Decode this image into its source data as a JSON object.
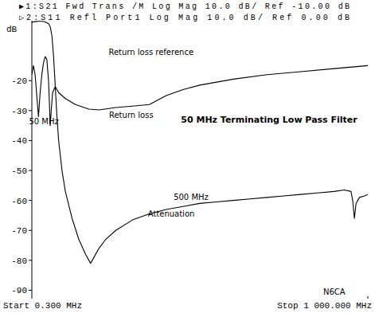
{
  "chart_data": {
    "type": "line",
    "title": "50 MHz Terminating Low Pass Filter",
    "subtitle": [
      "▶1:S21 Fwd Trans /M Log Mag 10.0 dB/ Ref -10.00 dB",
      "▷2:S11 Refl Port1 Log Mag 10.0 dB/ Ref 0.00 dB"
    ],
    "y_label": "dB",
    "xlim": [
      0.3,
      1000
    ],
    "xticks": [
      {
        "value": 0.3,
        "label": "Start 0.300 MHz"
      },
      {
        "value": 1000,
        "label": "Stop 1 000.000 MHz"
      }
    ],
    "ylim": [
      -92,
      0
    ],
    "yticks": [
      -20,
      -30,
      -40,
      -50,
      -60,
      -70,
      -80,
      -90
    ],
    "grid": false,
    "series": [
      {
        "color": "#000000",
        "line_style": "solid",
        "x": [
          0.3,
          10,
          20,
          30,
          40,
          50,
          55,
          60,
          65,
          70,
          75,
          80,
          90,
          100,
          120,
          140,
          160,
          175,
          185,
          200,
          220,
          250,
          300,
          350,
          400,
          450,
          500,
          550,
          600,
          650,
          700,
          750,
          800,
          850,
          900,
          930,
          950,
          955,
          960,
          965,
          975,
          990,
          1000
        ],
        "values": [
          -0.5,
          -0.3,
          -0.2,
          -0.2,
          -0.4,
          -1,
          -2,
          -5,
          -12,
          -22,
          -32,
          -40,
          -50,
          -57,
          -66,
          -73,
          -78,
          -81,
          -79,
          -76,
          -73,
          -70,
          -66.5,
          -64.5,
          -63,
          -62,
          -61,
          -60.5,
          -60,
          -59.5,
          -59,
          -58.5,
          -58,
          -57.5,
          -57,
          -56.5,
          -57,
          -60,
          -66,
          -61,
          -59,
          -58.5,
          -58
        ]
      },
      {
        "color": "#000000",
        "line_style": "solid",
        "x": [
          0.3,
          5,
          10,
          15,
          20,
          25,
          30,
          35,
          40,
          45,
          50,
          55,
          58,
          62,
          70,
          80,
          100,
          130,
          170,
          200,
          250,
          300,
          350,
          400,
          450,
          500,
          550,
          600,
          700,
          800,
          900,
          1000
        ],
        "values": [
          -18,
          -15,
          -18,
          -25,
          -32,
          -24,
          -18,
          -14,
          -12,
          -13,
          -20,
          -35,
          -30,
          -24,
          -22,
          -24,
          -26,
          -28,
          -29.5,
          -29.8,
          -29,
          -28.5,
          -28,
          -25,
          -23,
          -21.5,
          -20.5,
          -19.5,
          -18,
          -17,
          -16,
          -15
        ]
      }
    ],
    "annotations": [
      {
        "text": "Return loss reference",
        "x": 355,
        "y": -10.5
      },
      {
        "text": "Return loss",
        "x": 296,
        "y": -31.5
      },
      {
        "text": "50 MHz",
        "x": 36,
        "y": -33.5
      },
      {
        "text": "500 MHz",
        "x": 474,
        "y": -58.8
      },
      {
        "text": "Attenuation",
        "x": 415,
        "y": -64.4
      },
      {
        "text": "N6CA",
        "x": 900,
        "y": -90.4
      }
    ]
  }
}
